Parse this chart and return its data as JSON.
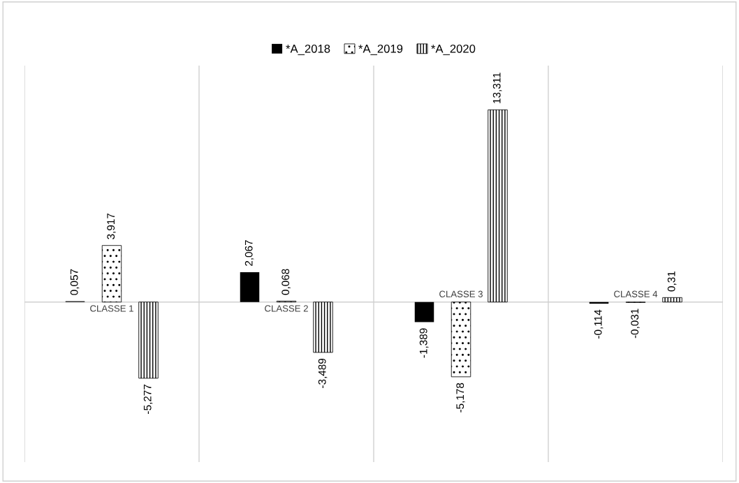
{
  "chart_data": {
    "type": "bar",
    "categories": [
      "CLASSE 1",
      "CLASSE 2",
      "CLASSE 3",
      "CLASSE 4"
    ],
    "series": [
      {
        "name": "*A_2018",
        "color": "#000000",
        "values": [
          0.057,
          2.067,
          -1.389,
          -0.114
        ],
        "value_labels": [
          "0,057",
          "2,067",
          "-1,389",
          "-0,114"
        ]
      },
      {
        "name": "*A_2019",
        "color": "#000000",
        "values": [
          3.917,
          0.068,
          -5.178,
          -0.031
        ],
        "value_labels": [
          "3,917",
          "0,068",
          "-5,178",
          "-0,031"
        ]
      },
      {
        "name": "*A_2020",
        "color": "#000000",
        "values": [
          -5.277,
          -3.489,
          13.311,
          0.31
        ],
        "value_labels": [
          "-5,277",
          "-3,489",
          "13,311",
          "0,31"
        ]
      }
    ],
    "grid": "x",
    "legend": "top"
  }
}
